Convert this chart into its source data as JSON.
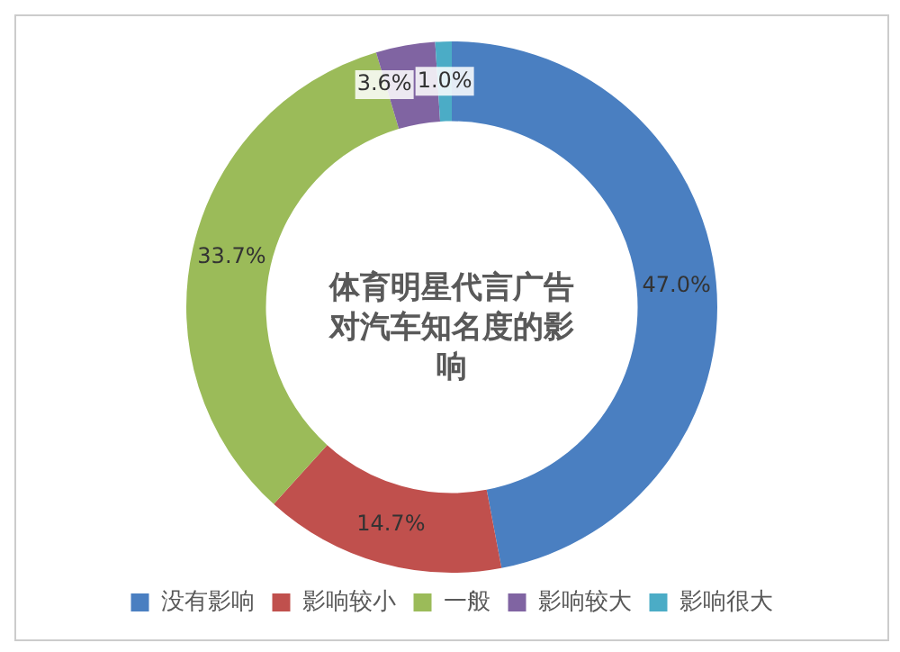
{
  "chart_data": {
    "type": "donut",
    "title": "体育明星代言广告对汽车知名度的影响",
    "categories": [
      "没有影响",
      "影响较小",
      "一般",
      "影响较大",
      "影响很大"
    ],
    "values": [
      47.0,
      14.7,
      33.7,
      3.6,
      1.0
    ],
    "colors": [
      "#4a7fc1",
      "#c0504d",
      "#9bbb59",
      "#8064a2",
      "#4bacc6"
    ],
    "value_labels": [
      "47.0%",
      "14.7%",
      "33.7%",
      "3.6%",
      "1.0%"
    ],
    "legend": "bottom"
  }
}
